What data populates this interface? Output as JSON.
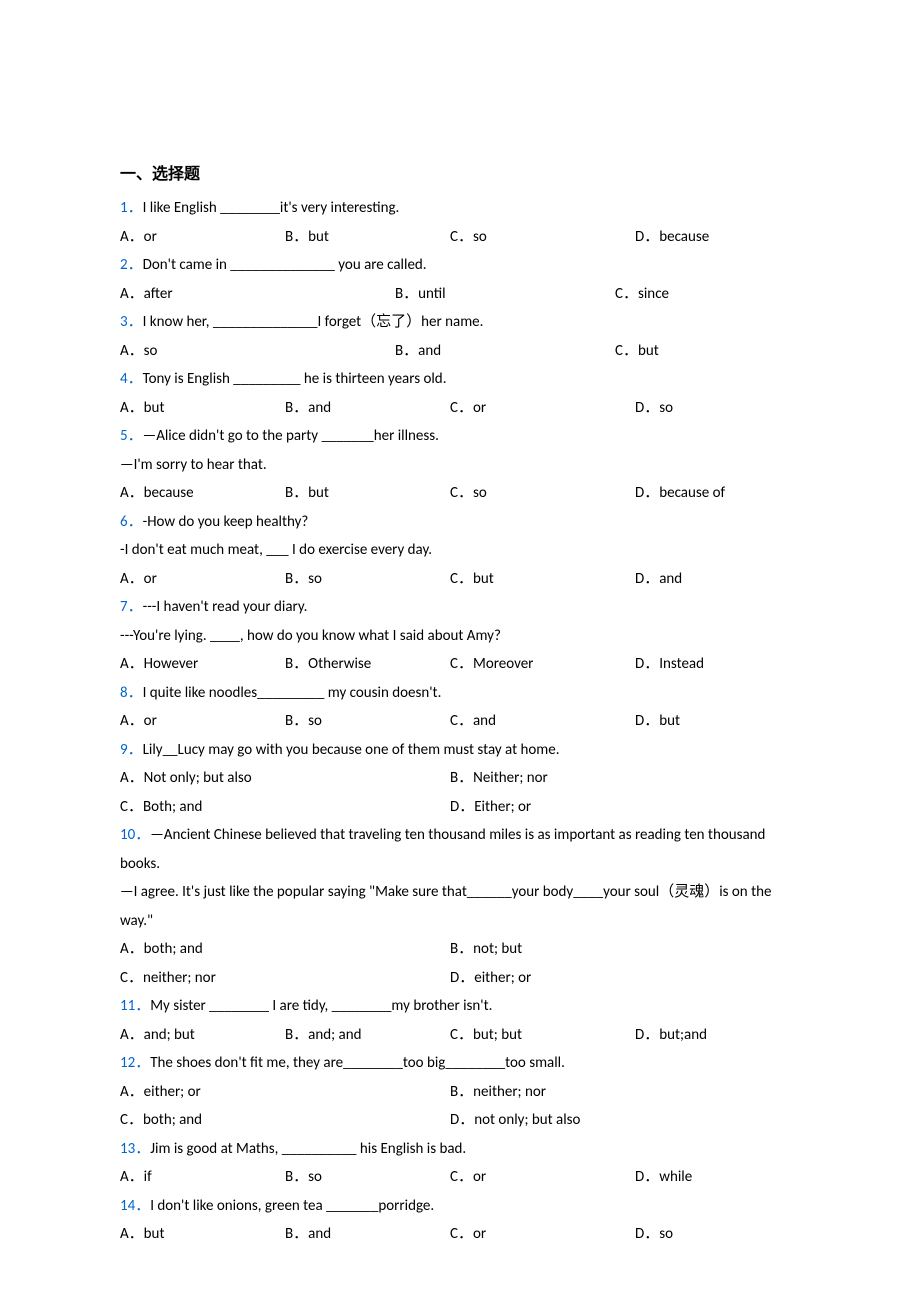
{
  "section_heading": "一、选择题",
  "questions": [
    {
      "num": "1．",
      "text": "I like English ________it's very interesting.",
      "layout": 4,
      "opts": [
        "A．or",
        "B．but",
        "C．so",
        "D．because"
      ]
    },
    {
      "num": "2．",
      "text": "Don't came in ______________ you are called.",
      "layout": 3,
      "opts": [
        "A．after",
        "B．until",
        "C．since"
      ]
    },
    {
      "num": "3．",
      "text": "I know her, ______________I forget（忘了）her name.",
      "layout": 3,
      "opts": [
        "A．so",
        "B．and",
        "C．but"
      ]
    },
    {
      "num": "4．",
      "text": "Tony is English _________ he is thirteen years old.",
      "layout": 4,
      "opts": [
        "A．but",
        "B．and",
        "C．or",
        "D．so"
      ]
    },
    {
      "num": "5．",
      "text": "—Alice didn't go to the party _______her illness.",
      "extra": [
        "—I'm sorry to hear that."
      ],
      "layout": 4,
      "opts": [
        "A．because",
        "B．but",
        "C．so",
        "D．because of"
      ]
    },
    {
      "num": "6．",
      "text": "-How do you keep healthy?",
      "extra": [
        "-I don't eat much meat, ___ I do exercise every day."
      ],
      "layout": 4,
      "opts": [
        "A．or",
        "B．so",
        "C．but",
        "D．and"
      ]
    },
    {
      "num": "7．",
      "text": "---I haven't read your diary.",
      "extra": [
        "---You're lying. ____, how do you know what I said about Amy?"
      ],
      "layout": 4,
      "opts": [
        "A．However",
        "B．Otherwise",
        "C．Moreover",
        "D．Instead"
      ]
    },
    {
      "num": "8．",
      "text": "I quite like noodles_________ my cousin doesn't.",
      "layout": 4,
      "opts": [
        "A．or",
        "B．so",
        "C．and",
        "D．but"
      ]
    },
    {
      "num": "9．",
      "text": "Lily__Lucy may go with you because one of them must stay at home.",
      "layout": "2x2",
      "opts": [
        "A．Not only; but also",
        "B．Neither; nor",
        "C．Both; and",
        "D．Either; or"
      ]
    },
    {
      "num": "10．",
      "text": "—Ancient Chinese believed that traveling ten thousand miles is as important as reading ten thousand books.",
      "wrap": true,
      "extra": [
        "—I agree. It's just like the popular saying \"Make sure that______your body____your soul（灵魂）is on the way.\""
      ],
      "layout": "2x2",
      "opts": [
        "A．both; and",
        "B．not; but",
        "C．neither; nor",
        "D．either; or"
      ]
    },
    {
      "num": "11．",
      "text": "My sister ________ I are tidy, ________my brother isn't.",
      "layout": 4,
      "opts": [
        "A．and; but",
        "B．and; and",
        "C．but; but",
        "D．but;and"
      ]
    },
    {
      "num": "12．",
      "text": "The shoes don't fit me, they are________too big________too small.",
      "layout": "2x2",
      "opts": [
        "A．either; or",
        "B．neither; nor",
        "C．both; and",
        "D．not only; but also"
      ]
    },
    {
      "num": "13．",
      "text": "Jim is good at Maths, __________ his English is bad.",
      "layout": 4,
      "opts": [
        "A．if",
        "B．so",
        "C．or",
        "D．while"
      ]
    },
    {
      "num": "14．",
      "text": "I don't like onions, green tea _______porridge.",
      "layout": 4,
      "opts": [
        "A．but",
        "B．and",
        "C．or",
        "D．so"
      ]
    }
  ]
}
